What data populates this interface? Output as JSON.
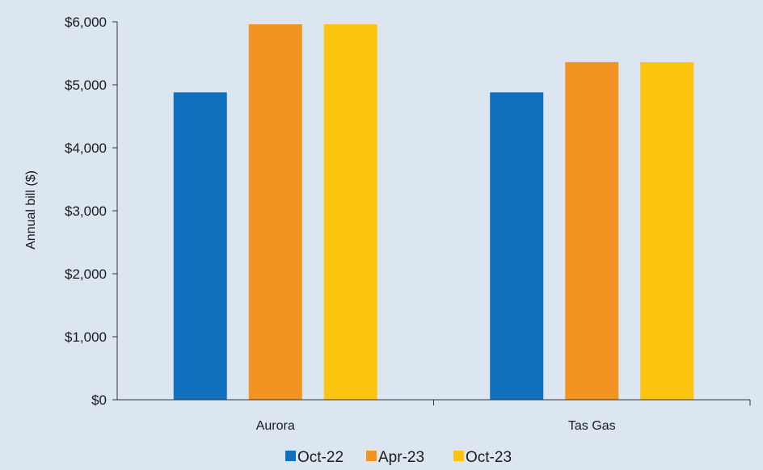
{
  "chart_data": {
    "type": "bar",
    "categories": [
      "Aurora",
      "Tas Gas"
    ],
    "series": [
      {
        "name": "Oct-22",
        "values": [
          4880,
          4880
        ],
        "color": "#1170bd"
      },
      {
        "name": "Apr-23",
        "values": [
          5960,
          5360
        ],
        "color": "#f39321"
      },
      {
        "name": "Oct-23",
        "values": [
          5960,
          5360
        ],
        "color": "#fcc30f"
      }
    ],
    "ylabel": "Annual bill ($)",
    "xlabel": "",
    "ylim": [
      0,
      6000
    ],
    "yticks": [
      0,
      1000,
      2000,
      3000,
      4000,
      5000,
      6000
    ],
    "ytick_labels": [
      "$0",
      "$1,000",
      "$2,000",
      "$3,000",
      "$4,000",
      "$5,000",
      "$6,000"
    ],
    "grid": false,
    "legend_position": "bottom"
  }
}
